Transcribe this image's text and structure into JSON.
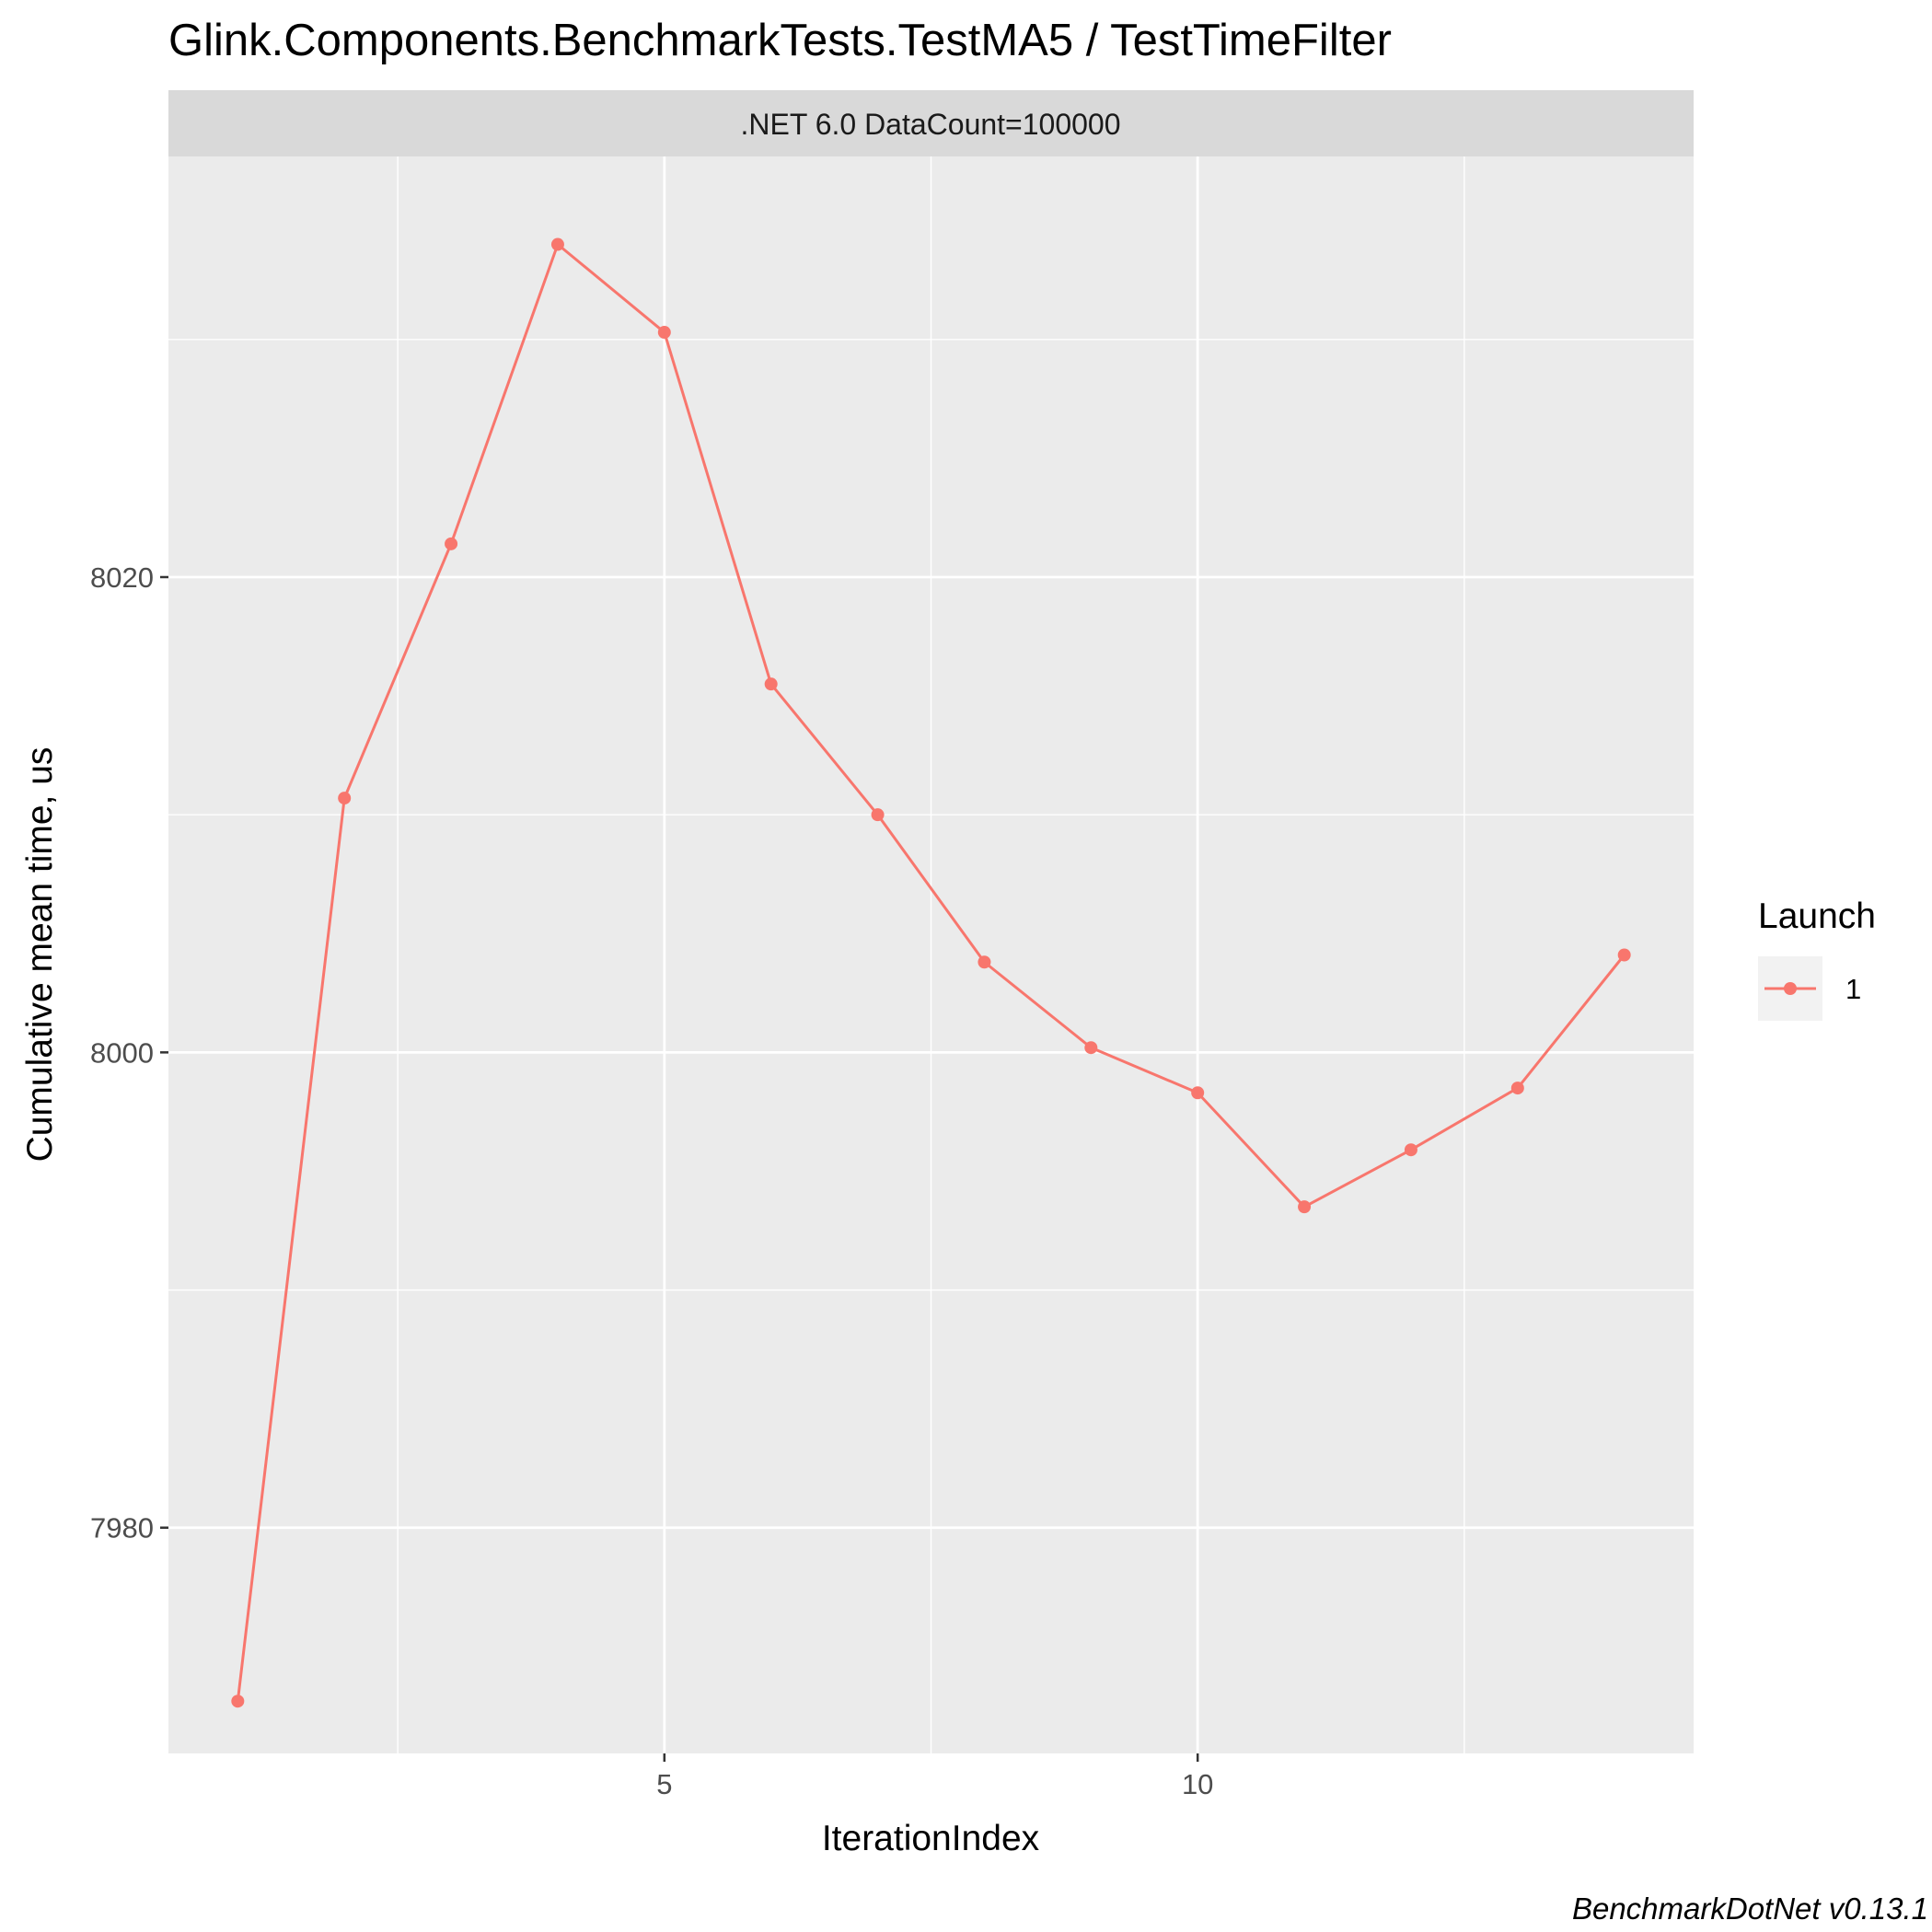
{
  "chart_data": {
    "type": "line",
    "title": "Glink.Components.BenchmarkTests.TestMA5 / TestTimeFilter",
    "facet_label": ".NET 6.0 DataCount=100000",
    "xlabel": "IterationIndex",
    "ylabel": "Cumulative mean time, us",
    "caption": "BenchmarkDotNet v0.13.1",
    "xlim": [
      0.35,
      14.65
    ],
    "ylim": [
      7970.5,
      8037.7
    ],
    "x_ticks": [
      {
        "value": 5,
        "label": "5"
      },
      {
        "value": 10,
        "label": "10"
      }
    ],
    "x_minor_ticks": [
      2.5,
      7.5,
      12.5
    ],
    "y_ticks": [
      {
        "value": 7980,
        "label": "7980"
      },
      {
        "value": 8000,
        "label": "8000"
      },
      {
        "value": 8020,
        "label": "8020"
      }
    ],
    "y_minor_ticks": [
      7990,
      8010,
      8030
    ],
    "grid": true,
    "legend": {
      "title": "Launch",
      "position": "right"
    },
    "series": [
      {
        "name": "1",
        "color": "#F8766D",
        "x": [
          1,
          2,
          3,
          4,
          5,
          6,
          7,
          8,
          9,
          10,
          11,
          12,
          13,
          14
        ],
        "values": [
          7972.7,
          8010.7,
          8021.4,
          8034.0,
          8030.3,
          8015.5,
          8010.0,
          8003.8,
          8000.2,
          7998.3,
          7993.5,
          7995.9,
          7998.5,
          8004.1
        ]
      }
    ]
  }
}
